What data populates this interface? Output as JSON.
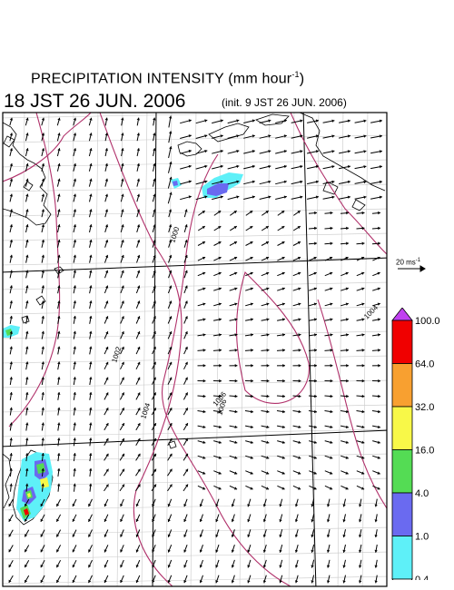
{
  "title": {
    "main_prefix": "PRECIPITATION INTENSITY (mm hour",
    "main_exponent": "-1",
    "main_suffix": ")",
    "valid_time": "18 JST 26 JUN. 2006",
    "init_time": "(init. 9 JST 26 JUN. 2006)"
  },
  "wind_scale": {
    "label_prefix": "20 ms",
    "label_exponent": "-1"
  },
  "colorbar": {
    "levels": [
      "0.4",
      "1.0",
      "4.0",
      "16.0",
      "32.0",
      "64.0",
      "100.0"
    ],
    "colors": [
      "#5ef0f8",
      "#6a6af0",
      "#54dc54",
      "#f8f848",
      "#f8a030",
      "#f00000",
      "#c040f0"
    ]
  },
  "contours": {
    "labels": [
      "1000",
      "1002",
      "1004",
      "1006",
      "1006",
      "1004",
      "1002"
    ],
    "color": "#b0306a"
  }
}
